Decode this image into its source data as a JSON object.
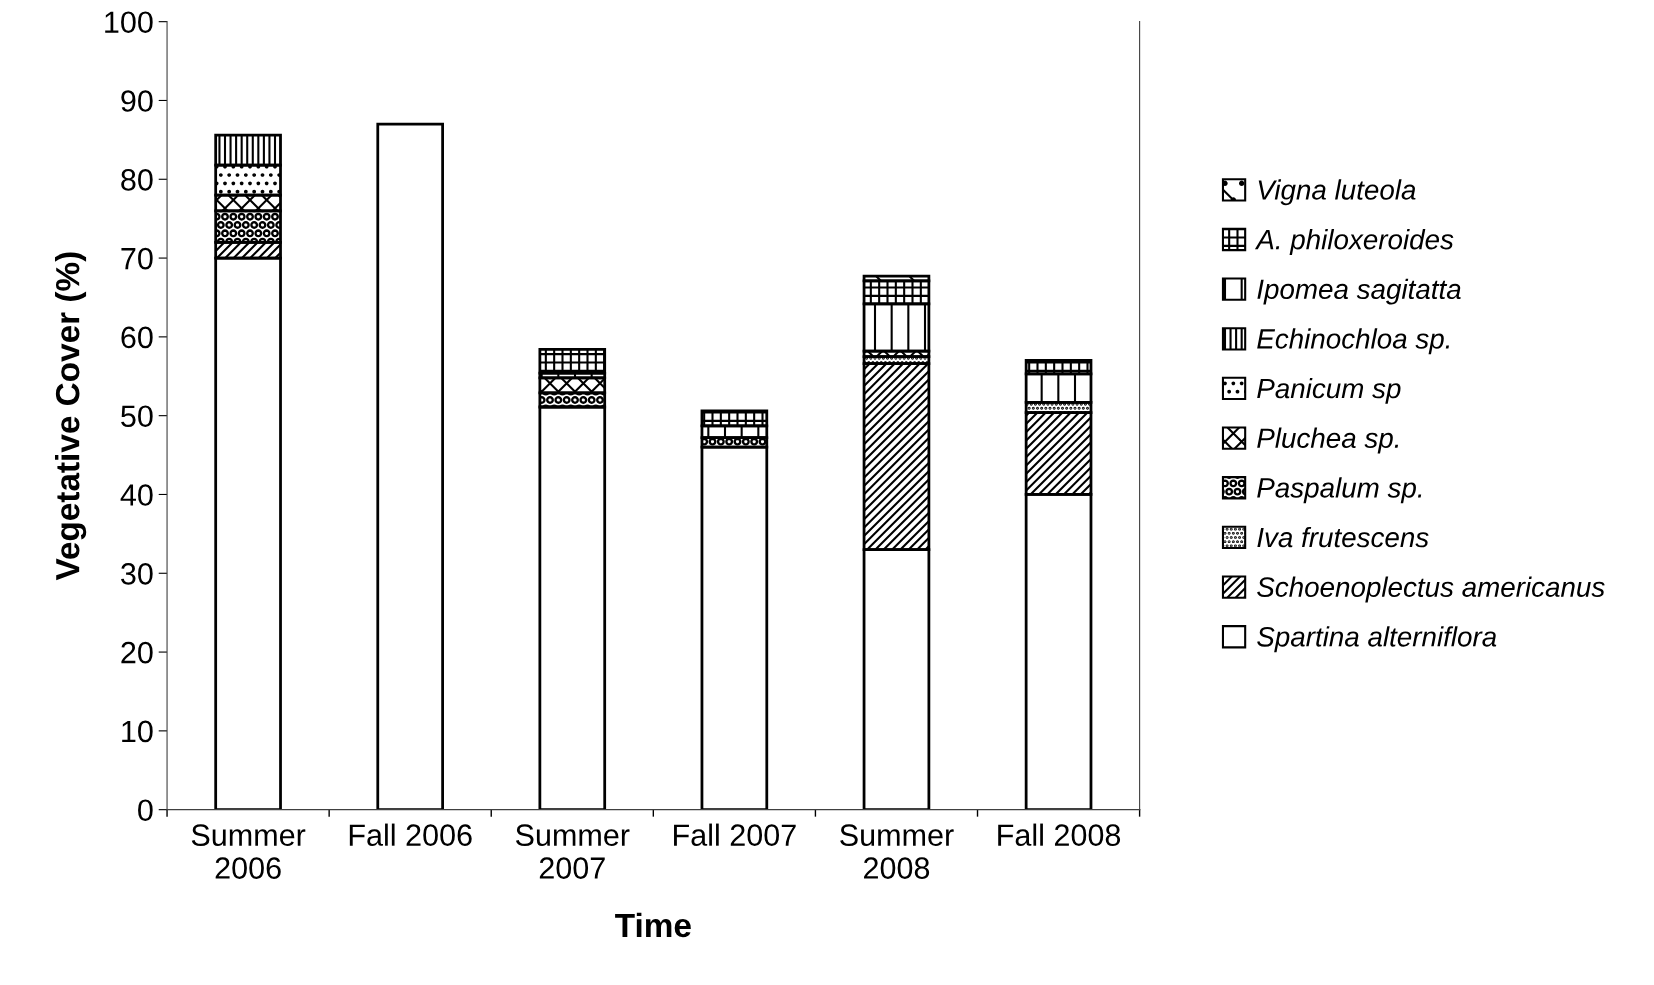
{
  "chart_data": {
    "type": "bar",
    "stacked": true,
    "xlabel": "Time",
    "ylabel": "Vegetative Cover (%)",
    "categories": [
      "Summer\n2006",
      "Fall 2006",
      "Summer\n2007",
      "Fall 2007",
      "Summer\n2008",
      "Fall 2008"
    ],
    "series": [
      {
        "name": "Spartina alterniflora",
        "color": "#ffffff",
        "values": [
          70,
          87,
          51.1,
          46,
          33,
          40
        ]
      },
      {
        "name": "Schoenoplectus americanus",
        "color": "#000000",
        "values": [
          2,
          null,
          null,
          null,
          23.6,
          10.4
        ]
      },
      {
        "name": "Iva frutescens",
        "color": "#000000",
        "values": [
          null,
          null,
          null,
          null,
          0.9,
          1.3
        ]
      },
      {
        "name": "Paspalum sp.",
        "color": "#000000",
        "values": [
          4,
          null,
          1.8,
          1.2,
          null,
          null
        ]
      },
      {
        "name": "Pluchea sp.",
        "color": "#000000",
        "values": [
          2,
          null,
          1.9,
          null,
          0.7,
          null
        ]
      },
      {
        "name": "Panicum sp",
        "color": "#000000",
        "values": [
          3.8,
          null,
          null,
          null,
          null,
          null
        ]
      },
      {
        "name": "Echinochloa sp.",
        "color": "#000000",
        "values": [
          3.8,
          null,
          null,
          null,
          null,
          null
        ]
      },
      {
        "name": "Ipomea sagitatta",
        "color": "#000000",
        "values": [
          null,
          null,
          0.6,
          1.5,
          6.0,
          3.6
        ]
      },
      {
        "name": "A. philoxeroides",
        "color": "#000000",
        "values": [
          null,
          null,
          3.0,
          1.9,
          2.9,
          1.7
        ]
      },
      {
        "name": "Vigna luteola",
        "color": "#000000",
        "values": [
          null,
          null,
          null,
          null,
          0.6,
          null
        ]
      }
    ],
    "ylim": [
      0,
      100
    ],
    "yticks": [
      0,
      10,
      20,
      30,
      40,
      50,
      60,
      70,
      80,
      90,
      100
    ],
    "grid": false,
    "legend": "right"
  }
}
